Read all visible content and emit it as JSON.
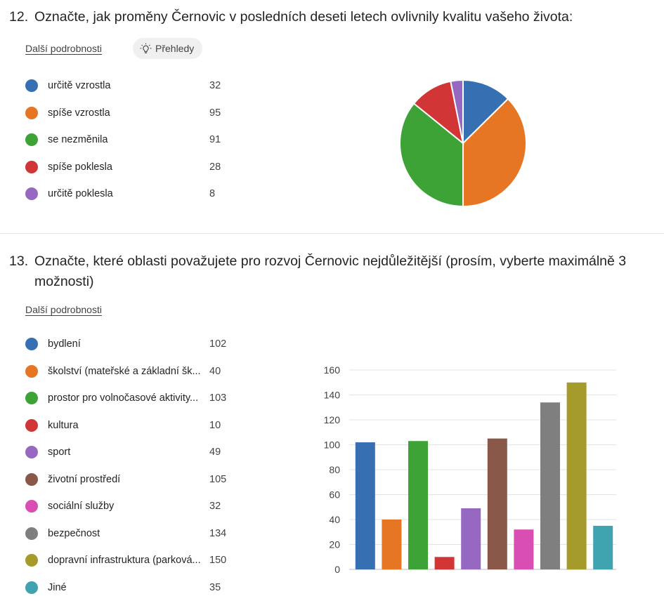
{
  "q12": {
    "number": "12.",
    "text": "Označte, jak proměny Černovic v posledních deseti letech ovlivnily kvalitu vašeho života:",
    "details_link": "Další podrobnosti",
    "insights_button": "Přehledy",
    "legend": [
      {
        "label": "určitě vzrostla",
        "count": "32",
        "color": "#3670b3"
      },
      {
        "label": "spíše vzrostla",
        "count": "95",
        "color": "#e67624"
      },
      {
        "label": "se nezměnila",
        "count": "91",
        "color": "#3da337"
      },
      {
        "label": "spíše poklesla",
        "count": "28",
        "color": "#d13536"
      },
      {
        "label": "určitě poklesla",
        "count": "8",
        "color": "#9668c2"
      }
    ]
  },
  "q13": {
    "number": "13.",
    "text_line1": "Označte, které oblasti považujete pro rozvoj Černovic nejdůležitější (prosím, vyberte maximálně 3",
    "text_line2": "možnosti)",
    "details_link": "Další podrobnosti",
    "legend": [
      {
        "label": "bydlení",
        "count": "102",
        "color": "#3670b3"
      },
      {
        "label": "školství (mateřské a základní šk...",
        "count": "40",
        "color": "#e67624"
      },
      {
        "label": "prostor pro volnočasové aktivity...",
        "count": "103",
        "color": "#3da337"
      },
      {
        "label": "kultura",
        "count": "10",
        "color": "#d13536"
      },
      {
        "label": "sport",
        "count": "49",
        "color": "#9668c2"
      },
      {
        "label": "životní prostředí",
        "count": "105",
        "color": "#8a5849"
      },
      {
        "label": "sociální služby",
        "count": "32",
        "color": "#d94eb3"
      },
      {
        "label": "bezpečnost",
        "count": "134",
        "color": "#7f7f7f"
      },
      {
        "label": "dopravní infrastruktura (parková...",
        "count": "150",
        "color": "#a59b2a"
      },
      {
        "label": "Jiné",
        "count": "35",
        "color": "#40a3b0"
      }
    ]
  },
  "chart_data": [
    {
      "type": "pie",
      "categories": [
        "určitě vzrostla",
        "spíše vzrostla",
        "se nezměnila",
        "spíše poklesla",
        "určitě poklesla"
      ],
      "values": [
        32,
        95,
        91,
        28,
        8
      ],
      "colors": [
        "#3670b3",
        "#e67624",
        "#3da337",
        "#d13536",
        "#9668c2"
      ],
      "legend_position": "left"
    },
    {
      "type": "bar",
      "categories": [
        "bydlení",
        "školství (mateřské a základní šk...",
        "prostor pro volnočasové aktivity...",
        "kultura",
        "sport",
        "životní prostředí",
        "sociální služby",
        "bezpečnost",
        "dopravní infrastruktura (parková...",
        "Jiné"
      ],
      "values": [
        102,
        40,
        103,
        10,
        49,
        105,
        32,
        134,
        150,
        35
      ],
      "colors": [
        "#3670b3",
        "#e67624",
        "#3da337",
        "#d13536",
        "#9668c2",
        "#8a5849",
        "#d94eb3",
        "#7f7f7f",
        "#a59b2a",
        "#40a3b0"
      ],
      "ylim": [
        0,
        160
      ],
      "yticks": [
        "0",
        "20",
        "40",
        "60",
        "80",
        "100",
        "120",
        "140",
        "160"
      ],
      "grid": true,
      "legend_position": "left"
    }
  ]
}
